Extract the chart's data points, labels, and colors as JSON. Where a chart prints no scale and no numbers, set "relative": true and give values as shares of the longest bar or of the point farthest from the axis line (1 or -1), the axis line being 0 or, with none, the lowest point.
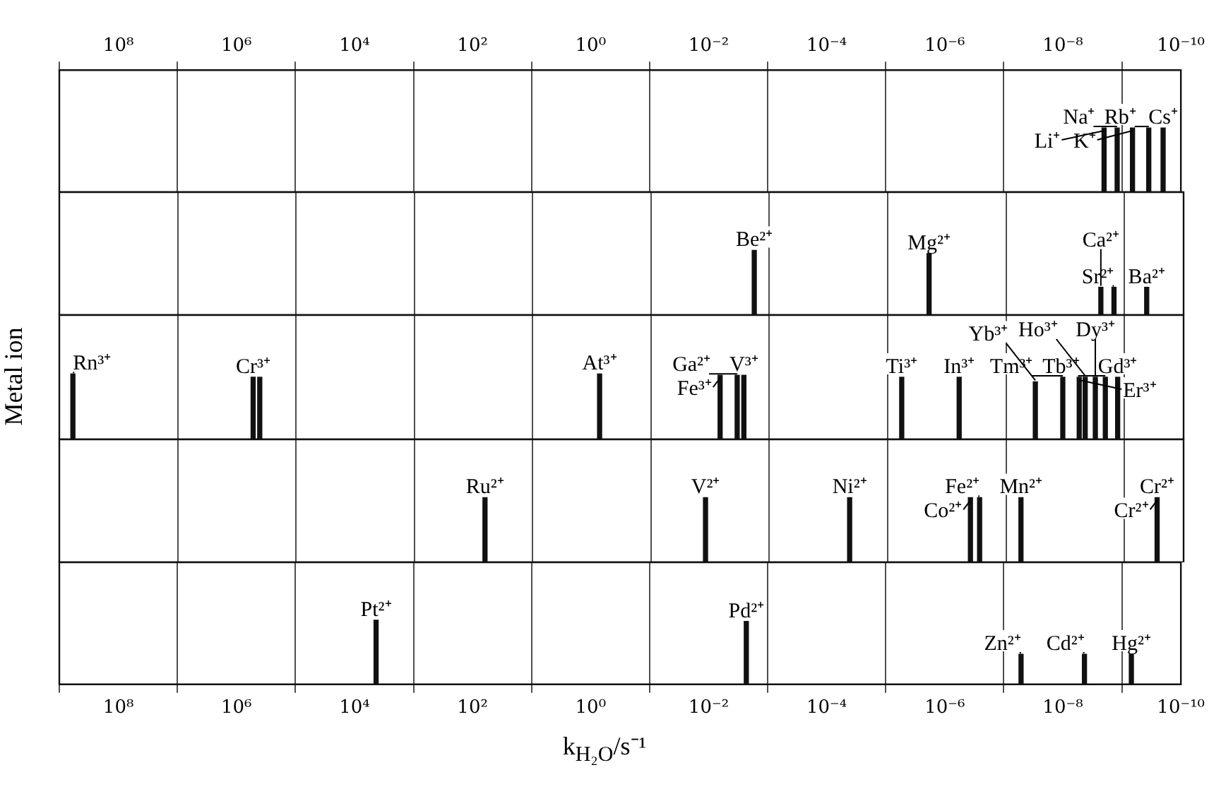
{
  "chart_data": [
    {
      "type": "bar",
      "relative": true,
      "color": "#111111",
      "log": "x",
      "grid": "x",
      "tick_labels": "x",
      "xlim": [
        1000000000.0,
        1e-10
      ],
      "xticks": [
        {
          "value": 100000000.0,
          "label": "10⁸"
        },
        {
          "value": 1000000.0,
          "label": "10⁶"
        },
        {
          "value": 10000.0,
          "label": "10⁴"
        },
        {
          "value": 100.0,
          "label": "10²"
        },
        {
          "value": 1,
          "label": "10⁰"
        },
        {
          "value": 0.01,
          "label": "10⁻²"
        },
        {
          "value": 0.0001,
          "label": "10⁻⁴"
        },
        {
          "value": 1e-06,
          "label": "10⁻⁶"
        },
        {
          "value": 1e-08,
          "label": "10⁻⁸"
        },
        {
          "value": 1e-10,
          "label": "10⁻¹⁰"
        }
      ],
      "x": [
        2e-09,
        1.2e-09,
        6.6e-10,
        3.5e-10,
        2e-10
      ],
      "values": [
        1,
        1,
        1,
        1,
        1
      ],
      "annotations": [
        {
          "text": "Li⁺",
          "x": 2e-09,
          "y": 1
        },
        {
          "text": "Na⁺",
          "x": 1.2e-09,
          "y": 1
        },
        {
          "text": "K⁺",
          "x": 6.6e-10,
          "y": 1
        },
        {
          "text": "Rb⁺",
          "x": 3.5e-10,
          "y": 1
        },
        {
          "text": "Cs⁺",
          "x": 2e-10,
          "y": 1
        }
      ]
    },
    {
      "type": "bar",
      "relative": true,
      "color": "#111111",
      "log": "x",
      "grid": "x",
      "tick_labels": false,
      "xlim": [
        1000000000.0,
        1e-10
      ],
      "xticks": [
        {
          "value": 100000000.0,
          "label": null
        },
        {
          "value": 1000000.0,
          "label": null
        },
        {
          "value": 10000.0,
          "label": null
        },
        {
          "value": 100.0,
          "label": null
        },
        {
          "value": 1,
          "label": null
        },
        {
          "value": 0.01,
          "label": null
        },
        {
          "value": 0.0001,
          "label": null
        },
        {
          "value": 1e-06,
          "label": null
        },
        {
          "value": 1e-08,
          "label": null
        },
        {
          "value": 1e-10,
          "label": null
        }
      ],
      "x": [
        0.0018,
        2e-06,
        2.5e-09,
        1.5e-09,
        4.2e-10
      ],
      "values": [
        1,
        0.95,
        0.43,
        0.43,
        0.43
      ],
      "annotations": [
        {
          "text": "Be²⁺",
          "x": 0.0018,
          "y": 1
        },
        {
          "text": "Mg²⁺",
          "x": 2e-06,
          "y": 0.95
        },
        {
          "text": "Ca²⁺",
          "x": 2.5e-09,
          "y": 0.43
        },
        {
          "text": "Sr²⁺",
          "x": 1.5e-09,
          "y": 0.43
        },
        {
          "text": "Ba²⁺",
          "x": 4.2e-10,
          "y": 0.43
        }
      ]
    },
    {
      "type": "bar",
      "relative": true,
      "color": "#111111",
      "log": "x",
      "grid": "x",
      "tick_labels": false,
      "ylabel": "Metal ion",
      "xlim": [
        1000000000.0,
        1e-10
      ],
      "xticks": [
        {
          "value": 100000000.0,
          "label": null
        },
        {
          "value": 1000000.0,
          "label": null
        },
        {
          "value": 10000.0,
          "label": null
        },
        {
          "value": 100.0,
          "label": null
        },
        {
          "value": 1,
          "label": null
        },
        {
          "value": 0.01,
          "label": null
        },
        {
          "value": 0.0001,
          "label": null
        },
        {
          "value": 1e-06,
          "label": null
        },
        {
          "value": 1e-08,
          "label": null
        },
        {
          "value": 1e-10,
          "label": null
        }
      ],
      "x": [
        590000000.0,
        530000.0,
        410000.0,
        0.74,
        0.0068,
        0.0035,
        0.0027,
        5.8e-06,
        6.2e-07,
        3.2e-08,
        1.1e-08,
        5.8e-09,
        4.6e-09,
        3.1e-09,
        2.1e-09,
        1.3e-09
      ],
      "values": [
        1,
        0.95,
        0.95,
        1,
        0.98,
        0.98,
        0.98,
        0.95,
        0.95,
        0.88,
        0.95,
        0.95,
        0.95,
        0.95,
        0.95,
        0.95
      ],
      "annotations": [
        {
          "text": "Rn³⁺",
          "x": 590000000.0,
          "y": 1
        },
        {
          "text": "Cr³⁺",
          "x": 530000.0,
          "y": 0.95
        },
        {
          "text": "At³⁺",
          "x": 0.74,
          "y": 1
        },
        {
          "text": "Fe³⁺",
          "x": 0.0068,
          "y": 0.98
        },
        {
          "text": "Ga²⁺",
          "x": 0.0035,
          "y": 0.98
        },
        {
          "text": "V³⁺",
          "x": 0.0027,
          "y": 0.98
        },
        {
          "text": "Ti³⁺",
          "x": 5.8e-06,
          "y": 0.95
        },
        {
          "text": "In³⁺",
          "x": 6.2e-07,
          "y": 0.95
        },
        {
          "text": "Yb³⁺",
          "x": 3.2e-08,
          "y": 0.88
        },
        {
          "text": "Tm³⁺",
          "x": 1.1e-08,
          "y": 0.95
        },
        {
          "text": "Er³⁺",
          "x": 5.8e-09,
          "y": 0.95
        },
        {
          "text": "Ho³⁺",
          "x": 4.6e-09,
          "y": 0.95
        },
        {
          "text": "Dy³⁺",
          "x": 3.1e-09,
          "y": 0.95
        },
        {
          "text": "Tb³⁺",
          "x": 2.1e-09,
          "y": 0.95
        },
        {
          "text": "Gd³⁺",
          "x": 1.3e-09,
          "y": 0.95
        }
      ]
    },
    {
      "type": "bar",
      "relative": true,
      "color": "#111111",
      "log": "x",
      "grid": "x",
      "tick_labels": false,
      "xlim": [
        1000000000.0,
        1e-10
      ],
      "xticks": [
        {
          "value": 100000000.0,
          "label": null
        },
        {
          "value": 1000000.0,
          "label": null
        },
        {
          "value": 10000.0,
          "label": null
        },
        {
          "value": 100.0,
          "label": null
        },
        {
          "value": 1,
          "label": null
        },
        {
          "value": 0.01,
          "label": null
        },
        {
          "value": 0.0001,
          "label": null
        },
        {
          "value": 1e-06,
          "label": null
        },
        {
          "value": 1e-08,
          "label": null
        },
        {
          "value": 1e-10,
          "label": null
        }
      ],
      "x": [
        64.0,
        0.012,
        4.4e-05,
        4e-07,
        2.8e-07,
        5.6e-08,
        2.8e-10
      ],
      "values": [
        1,
        1,
        1,
        1,
        1,
        1,
        1
      ],
      "annotations": [
        {
          "text": "Ru²⁺",
          "x": 64.0,
          "y": 1
        },
        {
          "text": "V²⁺",
          "x": 0.012,
          "y": 1
        },
        {
          "text": "Ni²⁺",
          "x": 4.4e-05,
          "y": 1
        },
        {
          "text": "Co²⁺",
          "x": 4e-07,
          "y": 1
        },
        {
          "text": "Fe²⁺",
          "x": 2.8e-07,
          "y": 1
        },
        {
          "text": "Mn²⁺",
          "x": 5.6e-08,
          "y": 1
        },
        {
          "text": "Cr²⁺",
          "x": 2.8e-10,
          "y": 1
        },
        {
          "text": "Cr²⁺",
          "x": 2.8e-10,
          "y": 1
        }
      ]
    },
    {
      "type": "bar",
      "relative": true,
      "color": "#111111",
      "log": "x",
      "grid": "x",
      "tick_labels": "x",
      "xlabel": "k$_{H₂O}$/s⁻¹",
      "xlim": [
        1000000000.0,
        1e-10
      ],
      "xticks": [
        {
          "value": 100000000.0,
          "label": "10⁸"
        },
        {
          "value": 1000000.0,
          "label": "10⁶"
        },
        {
          "value": 10000.0,
          "label": "10⁴"
        },
        {
          "value": 100.0,
          "label": "10²"
        },
        {
          "value": 1,
          "label": "10⁰"
        },
        {
          "value": 0.01,
          "label": "10⁻²"
        },
        {
          "value": 0.0001,
          "label": "10⁻⁴"
        },
        {
          "value": 1e-06,
          "label": "10⁻⁶"
        },
        {
          "value": 1e-08,
          "label": "10⁻⁸"
        },
        {
          "value": 1e-10,
          "label": "10⁻¹⁰"
        }
      ],
      "x": [
        4300.0,
        0.0023,
        5.1e-08,
        4.3e-09,
        6.9e-10
      ],
      "values": [
        1,
        0.98,
        0.47,
        0.47,
        0.47
      ],
      "annotations": [
        {
          "text": "Pt²⁺",
          "x": 4300.0,
          "y": 1
        },
        {
          "text": "Pd²⁺",
          "x": 0.0023,
          "y": 0.98
        },
        {
          "text": "Zn²⁺",
          "x": 5.1e-08,
          "y": 0.47
        },
        {
          "text": "Cd²⁺",
          "x": 4.3e-09,
          "y": 0.47
        },
        {
          "text": "Hg²⁺",
          "x": 6.9e-10,
          "y": 0.47
        }
      ]
    }
  ]
}
